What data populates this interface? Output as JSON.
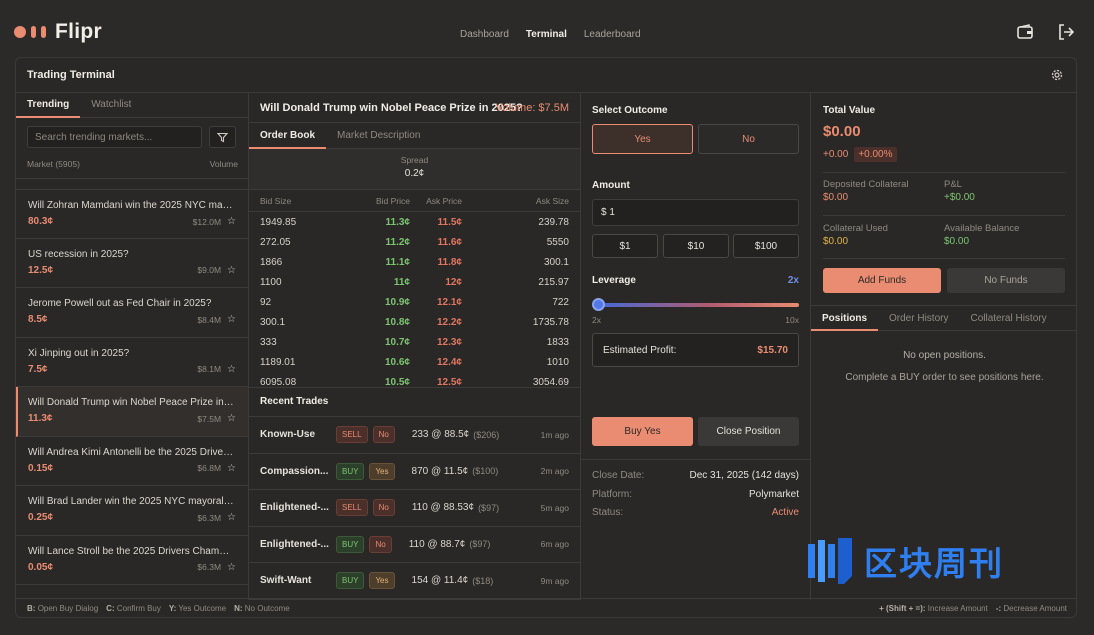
{
  "app": {
    "logo_text": "Flipr",
    "nav": [
      "Dashboard",
      "Terminal",
      "Leaderboard"
    ],
    "active_nav": "Terminal"
  },
  "panel": {
    "title": "Trading Terminal"
  },
  "left": {
    "tabs": [
      "Trending",
      "Watchlist"
    ],
    "search_placeholder": "Search trending markets...",
    "col_market": "Market (5905)",
    "col_volume": "Volume",
    "markets": [
      {
        "q": "Will Zohran Mamdani win the 2025 NYC mayoral election?",
        "price": "80.3¢",
        "vol": "$12.0M"
      },
      {
        "q": "US recession in 2025?",
        "price": "12.5¢",
        "vol": "$9.0M"
      },
      {
        "q": "Jerome Powell out as Fed Chair in 2025?",
        "price": "8.5¢",
        "vol": "$8.4M"
      },
      {
        "q": "Xi Jinping out in 2025?",
        "price": "7.5¢",
        "vol": "$8.1M"
      },
      {
        "q": "Will Donald Trump win Nobel Peace Prize in 2025?",
        "price": "11.3¢",
        "vol": "$7.5M"
      },
      {
        "q": "Will Andrea Kimi Antonelli be the 2025 Drivers Champion?",
        "price": "0.15¢",
        "vol": "$6.8M"
      },
      {
        "q": "Will Brad Lander win the 2025 NYC mayoral election?",
        "price": "0.25¢",
        "vol": "$6.3M"
      },
      {
        "q": "Will Lance Stroll be the 2025 Drivers Champion?",
        "price": "0.05¢",
        "vol": "$6.3M"
      }
    ]
  },
  "middle": {
    "title": "Will Donald Trump win Nobel Peace Prize in 2025?",
    "volume": "Volume: $7.5M",
    "tabs": [
      "Order Book",
      "Market Description"
    ],
    "spread_label": "Spread",
    "spread_value": "0.2¢",
    "ob_headers": [
      "Bid Size",
      "Bid Price",
      "Ask Price",
      "Ask Size"
    ],
    "order_book": [
      [
        "1949.85",
        "11.3¢",
        "11.5¢",
        "239.78"
      ],
      [
        "272.05",
        "11.2¢",
        "11.6¢",
        "5550"
      ],
      [
        "1866",
        "11.1¢",
        "11.8¢",
        "300.1"
      ],
      [
        "1100",
        "11¢",
        "12¢",
        "215.97"
      ],
      [
        "92",
        "10.9¢",
        "12.1¢",
        "722"
      ],
      [
        "300.1",
        "10.8¢",
        "12.2¢",
        "1735.78"
      ],
      [
        "333",
        "10.7¢",
        "12.3¢",
        "1833"
      ],
      [
        "1189.01",
        "10.6¢",
        "12.4¢",
        "1010"
      ],
      [
        "6095.08",
        "10.5¢",
        "12.5¢",
        "3054.69"
      ]
    ],
    "recent_trades_title": "Recent Trades",
    "trades": [
      {
        "name": "Known-Use",
        "side": "SELL",
        "outcome": "No",
        "detail": "233 @ 88.5¢",
        "usd": "($206)",
        "time": "1m ago"
      },
      {
        "name": "Compassion...",
        "side": "BUY",
        "outcome": "Yes",
        "detail": "870 @ 11.5¢",
        "usd": "($100)",
        "time": "2m ago"
      },
      {
        "name": "Enlightened-...",
        "side": "SELL",
        "outcome": "No",
        "detail": "110 @ 88.53¢",
        "usd": "($97)",
        "time": "5m ago"
      },
      {
        "name": "Enlightened-...",
        "side": "BUY",
        "outcome": "No",
        "detail": "110 @ 88.7¢",
        "usd": "($97)",
        "time": "6m ago"
      },
      {
        "name": "Swift-Want",
        "side": "BUY",
        "outcome": "Yes",
        "detail": "154 @ 11.4¢",
        "usd": "($18)",
        "time": "9m ago"
      }
    ]
  },
  "trade": {
    "select_outcome": "Select Outcome",
    "yes": "Yes",
    "no": "No",
    "amount_label": "Amount",
    "amount_value": "$ 1",
    "quick": [
      "$1",
      "$10",
      "$100"
    ],
    "leverage_label": "Leverage",
    "leverage_value": "2x",
    "leverage_min": "2x",
    "leverage_max": "10x",
    "profit_label": "Estimated Profit:",
    "profit_value": "$15.70",
    "buy_label": "Buy Yes",
    "close_label": "Close Position",
    "info": [
      {
        "k": "Close Date:",
        "v": "Dec 31, 2025 (142 days)"
      },
      {
        "k": "Platform:",
        "v": "Polymarket"
      },
      {
        "k": "Status:",
        "v": "Active"
      }
    ]
  },
  "right": {
    "total_label": "Total Value",
    "total_value": "$0.00",
    "change": "+0.00",
    "change_pct": "+0.00%",
    "stats": [
      {
        "k": "Deposited Collateral",
        "v": "$0.00",
        "color": "#e98c71"
      },
      {
        "k": "P&L",
        "v": "+$0.00",
        "color": "#7dc472"
      },
      {
        "k": "Collateral Used",
        "v": "$0.00",
        "color": "#e0b34a"
      },
      {
        "k": "Available Balance",
        "v": "$0.00",
        "color": "#7dc472"
      }
    ],
    "add_funds": "Add Funds",
    "no_funds": "No Funds",
    "tabs": [
      "Positions",
      "Order History",
      "Collateral History"
    ],
    "no_positions": "No open positions.",
    "hint": "Complete a BUY order to see positions here."
  },
  "footer": {
    "left": [
      [
        "B:",
        "Open Buy Dialog"
      ],
      [
        "C:",
        "Confirm Buy"
      ],
      [
        "Y:",
        "Yes Outcome"
      ],
      [
        "N:",
        "No Outcome"
      ]
    ],
    "right": [
      [
        "+ (Shift + =):",
        "Increase Amount"
      ],
      [
        "-:",
        "Decrease Amount"
      ]
    ]
  },
  "watermark": {
    "text": "区块周刊"
  }
}
